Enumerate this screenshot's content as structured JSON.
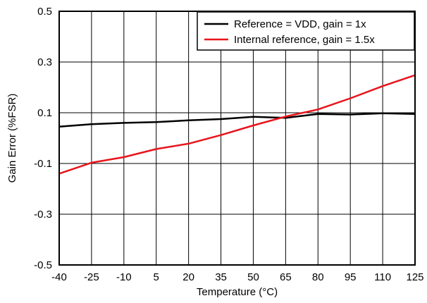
{
  "chart_data": {
    "type": "line",
    "title": "",
    "xlabel": "Temperature (°C)",
    "ylabel": "Gain Error (%FSR)",
    "x": [
      -40,
      -25,
      -10,
      5,
      20,
      35,
      50,
      65,
      80,
      95,
      110,
      125
    ],
    "x_tick_labels": [
      "-40",
      "-25",
      "-10",
      "5",
      "20",
      "35",
      "50",
      "65",
      "80",
      "95",
      "110",
      "125"
    ],
    "y_tick_labels": [
      "0.5",
      "0.3",
      "0.1",
      "-0.1",
      "-0.3",
      "-0.5"
    ],
    "y_ticks": [
      0.5,
      0.3,
      0.1,
      -0.1,
      -0.3,
      -0.5
    ],
    "xlim": [
      -40,
      125
    ],
    "ylim": [
      -0.5,
      0.5
    ],
    "grid": true,
    "legend_position": "top-right",
    "series": [
      {
        "name": "Reference = VDD, gain = 1x",
        "color": "#000000",
        "values": [
          0.045,
          0.055,
          0.06,
          0.063,
          0.07,
          0.075,
          0.084,
          0.08,
          0.095,
          0.093,
          0.098,
          0.095
        ]
      },
      {
        "name": "Internal reference, gain = 1.5x",
        "color": "#e8141c",
        "values": [
          -0.14,
          -0.097,
          -0.075,
          -0.043,
          -0.022,
          0.012,
          0.05,
          0.085,
          0.113,
          0.157,
          0.205,
          0.248
        ]
      }
    ]
  }
}
